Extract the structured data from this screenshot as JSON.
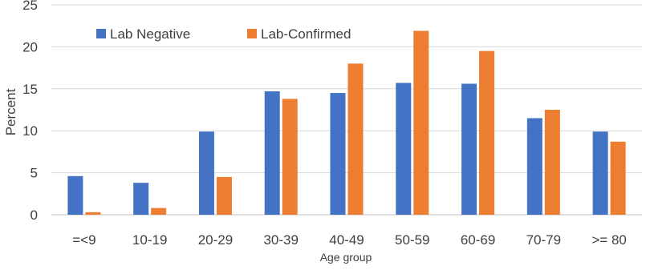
{
  "chart_data": {
    "type": "bar",
    "title": "",
    "xlabel": "Age group",
    "ylabel": "Percent",
    "categories": [
      "=<9",
      "10-19",
      "20-29",
      "30-39",
      "40-49",
      "50-59",
      "60-69",
      "70-79",
      ">= 80"
    ],
    "series": [
      {
        "name": "Lab Negative",
        "color": "#4472C4",
        "values": [
          4.6,
          3.8,
          9.9,
          14.7,
          14.5,
          15.7,
          15.6,
          11.5,
          9.9
        ]
      },
      {
        "name": "Lab-Confirmed",
        "color": "#ED7D31",
        "values": [
          0.3,
          0.8,
          4.5,
          13.8,
          18.0,
          21.9,
          19.5,
          12.5,
          8.7
        ]
      }
    ],
    "ylim": [
      0,
      25
    ],
    "yticks": [
      0,
      5,
      10,
      15,
      20,
      25
    ],
    "grid": true,
    "legend_position": "top-left"
  }
}
